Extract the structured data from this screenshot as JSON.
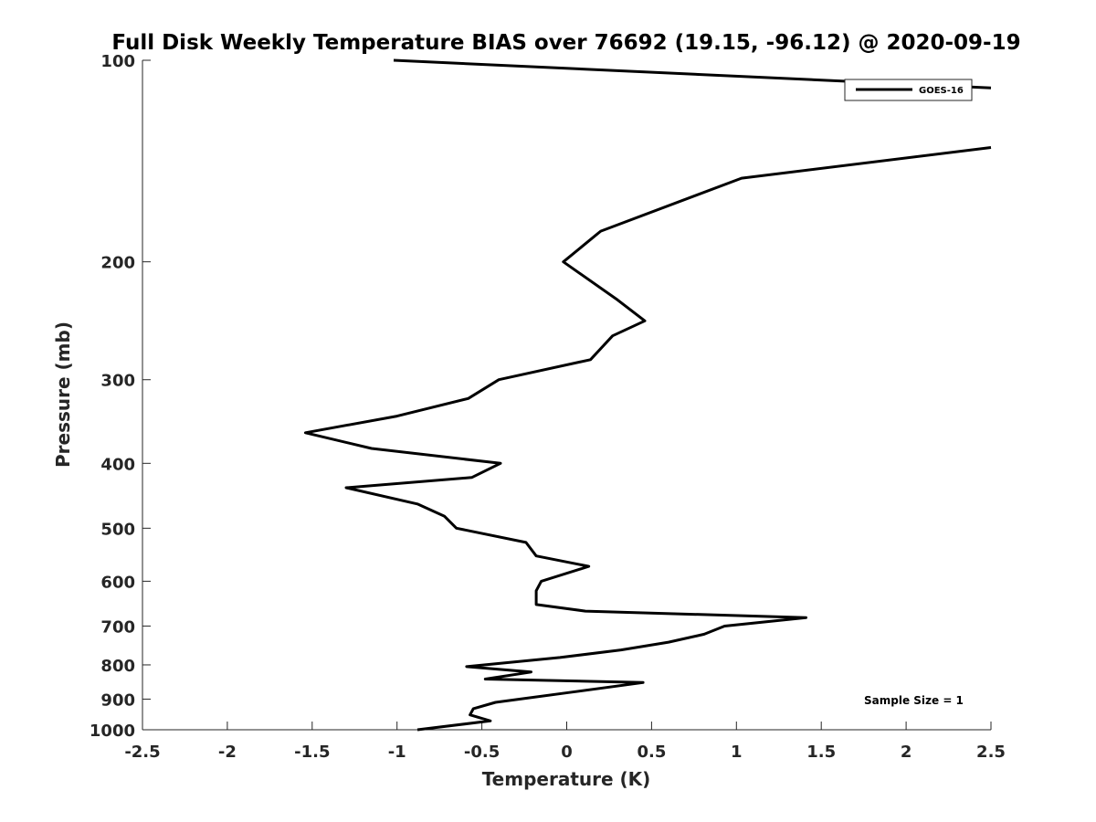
{
  "chart_data": {
    "type": "line",
    "title": "Full Disk Weekly Temperature BIAS over 76692 (19.15, -96.12) @ 2020-09-19",
    "xlabel": "Temperature (K)",
    "ylabel": "Pressure (mb)",
    "xlim": [
      -2.5,
      2.5
    ],
    "ylim": [
      100,
      1000
    ],
    "y_scale": "log",
    "y_reversed": true,
    "x_ticks": [
      -2.5,
      -2,
      -1.5,
      -1,
      -0.5,
      0,
      0.5,
      1,
      1.5,
      2,
      2.5
    ],
    "x_tick_labels": [
      "-2.5",
      "-2",
      "-1.5",
      "-1",
      "-0.5",
      "0",
      "0.5",
      "1",
      "1.5",
      "2",
      "2.5"
    ],
    "y_ticks": [
      100,
      200,
      300,
      400,
      500,
      600,
      700,
      800,
      900,
      1000
    ],
    "y_tick_labels": [
      "100",
      "200",
      "300",
      "400",
      "500",
      "600",
      "700",
      "800",
      "900",
      "1000"
    ],
    "grid": false,
    "legend": {
      "placement": "top-right",
      "entries": [
        "GOES-16"
      ]
    },
    "annotation": "Sample Size = 1",
    "series": [
      {
        "name": "GOES-16",
        "color": "#000000",
        "points": [
          [
            -1.02,
            100
          ],
          [
            2.5,
            110
          ],
          [
            null,
            null
          ],
          [
            2.5,
            135
          ],
          [
            1.03,
            150
          ],
          [
            0.2,
            180
          ],
          [
            -0.02,
            200
          ],
          [
            0.3,
            228
          ],
          [
            0.46,
            245
          ],
          [
            0.27,
            258
          ],
          [
            0.14,
            280
          ],
          [
            -0.4,
            300
          ],
          [
            -0.58,
            320
          ],
          [
            -1.0,
            340
          ],
          [
            -1.54,
            360
          ],
          [
            -1.15,
            380
          ],
          [
            -0.39,
            400
          ],
          [
            -0.56,
            420
          ],
          [
            -1.3,
            435
          ],
          [
            -0.88,
            460
          ],
          [
            -0.72,
            480
          ],
          [
            -0.65,
            500
          ],
          [
            -0.24,
            525
          ],
          [
            -0.18,
            550
          ],
          [
            0.13,
            570
          ],
          [
            -0.15,
            600
          ],
          [
            -0.18,
            620
          ],
          [
            -0.18,
            650
          ],
          [
            0.11,
            665
          ],
          [
            1.41,
            680
          ],
          [
            0.93,
            700
          ],
          [
            0.81,
            720
          ],
          [
            0.6,
            740
          ],
          [
            0.32,
            760
          ],
          [
            -0.04,
            780
          ],
          [
            -0.59,
            805
          ],
          [
            -0.21,
            820
          ],
          [
            -0.48,
            840
          ],
          [
            0.45,
            850
          ],
          [
            0.01,
            880
          ],
          [
            -0.42,
            910
          ],
          [
            -0.55,
            930
          ],
          [
            -0.57,
            950
          ],
          [
            -0.45,
            970
          ],
          [
            -0.88,
            1000
          ]
        ]
      }
    ]
  }
}
